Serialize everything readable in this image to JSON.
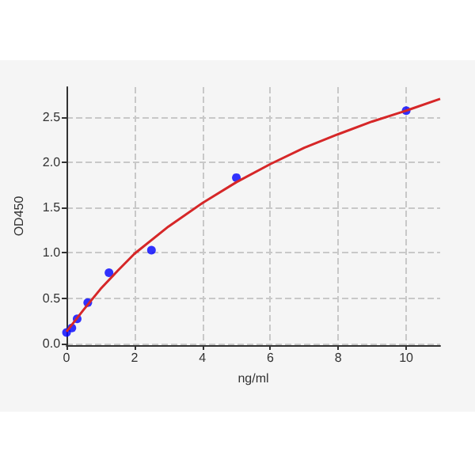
{
  "chart_data": {
    "type": "scatter",
    "xlabel": "ng/ml",
    "ylabel": "OD450",
    "xlim": [
      0,
      11
    ],
    "ylim": [
      -0.02,
      2.83
    ],
    "xticks": [
      0,
      2,
      4,
      6,
      8,
      10
    ],
    "yticks": [
      {
        "value": 0,
        "label": "0.0"
      },
      0.5,
      {
        "value": 1,
        "label": "1.0"
      },
      1.5,
      {
        "value": 2,
        "label": "2.0"
      },
      2.5
    ],
    "grid": true,
    "marker": "circle",
    "series": [
      {
        "color": "#0000ff",
        "x": [
          0,
          0.156,
          0.3125,
          0.625,
          1.25,
          2.5,
          5,
          10
        ],
        "values": [
          0.12,
          0.17,
          0.27,
          0.45,
          0.78,
          1.03,
          1.83,
          2.57
        ]
      },
      {
        "type": "line",
        "color": "#d62728",
        "marker": "none",
        "x": [
          0,
          0.25,
          0.5,
          1,
          1.5,
          2,
          3,
          4,
          5,
          6,
          7,
          8,
          9,
          10,
          11
        ],
        "values": [
          0.13,
          0.25,
          0.37,
          0.6,
          0.8,
          0.99,
          1.29,
          1.55,
          1.78,
          1.98,
          2.16,
          2.31,
          2.45,
          2.57,
          2.7
        ]
      }
    ]
  }
}
